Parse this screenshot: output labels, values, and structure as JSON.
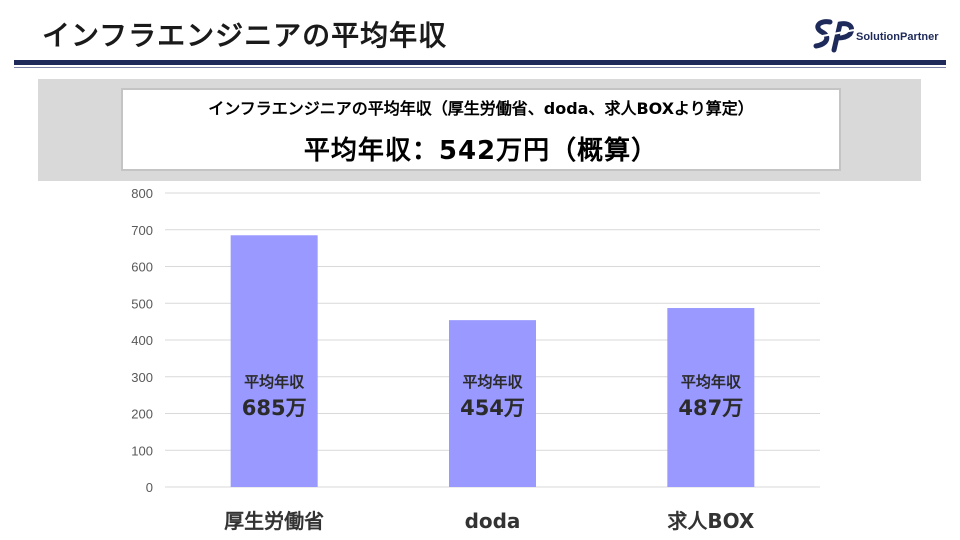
{
  "header": {
    "title": "インフラエンジニアの平均年収",
    "logo_mark": "SP",
    "logo_text": "SolutionPartner"
  },
  "summary": {
    "subtitle": "インフラエンジニアの平均年収（厚生労働省、doda、求人BOXより算定）",
    "main": "平均年収：542万円（概算）"
  },
  "colors": {
    "bar": "#9999ff",
    "grid": "#d9d9d9",
    "header_rule": "#1e2a5a",
    "band": "#d9d9d9"
  },
  "chart_data": {
    "type": "bar",
    "categories": [
      "厚生労働省",
      "doda",
      "求人BOX"
    ],
    "values": [
      685,
      454,
      487
    ],
    "data_labels": [
      {
        "title": "平均年収",
        "value": "685万"
      },
      {
        "title": "平均年収",
        "value": "454万"
      },
      {
        "title": "平均年収",
        "value": "487万"
      }
    ],
    "yticks": [
      "0",
      "100",
      "200",
      "300",
      "400",
      "500",
      "600",
      "700",
      "800"
    ],
    "ylim": [
      0,
      800
    ],
    "grid": true,
    "legend": "none"
  }
}
